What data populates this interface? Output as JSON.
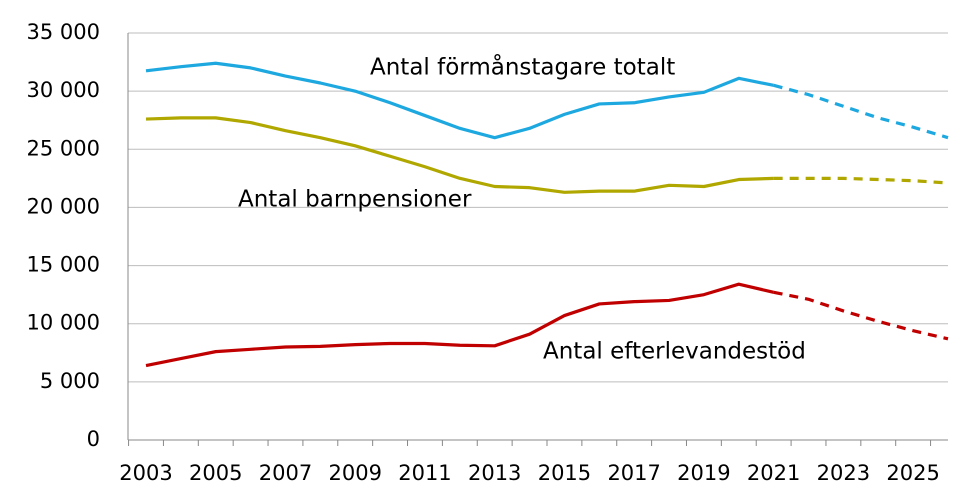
{
  "chart_data": {
    "type": "line",
    "categories": [
      "2003",
      null,
      "2005",
      null,
      "2007",
      null,
      "2009",
      null,
      "2011",
      null,
      "2013",
      null,
      "2015",
      null,
      "2017",
      null,
      "2019",
      null,
      "2021",
      null,
      "2023",
      null,
      "2025",
      null
    ],
    "dashed_from": "2021",
    "series": [
      {
        "name": "Antal förmånstagare totalt",
        "color": "#1ea8e0",
        "values": [
          31750,
          32100,
          32400,
          32000,
          31300,
          30700,
          30000,
          29000,
          27900,
          26800,
          26000,
          26800,
          28000,
          28900,
          29000,
          29500,
          29900,
          31100,
          30500,
          29700,
          28700,
          27700,
          26900,
          26000
        ]
      },
      {
        "name": "Antal barnpensioner",
        "color": "#b0a800",
        "values": [
          27600,
          27700,
          27700,
          27300,
          26600,
          26000,
          25300,
          24400,
          23500,
          22500,
          21800,
          21700,
          21300,
          21400,
          21400,
          21900,
          21800,
          22400,
          22500,
          22500,
          22500,
          22400,
          22300,
          22100
        ]
      },
      {
        "name": "Antal efterlevandestöd",
        "color": "#c00000",
        "values": [
          6400,
          7000,
          7600,
          7800,
          8000,
          8050,
          8200,
          8300,
          8300,
          8150,
          8100,
          9100,
          10700,
          11700,
          11900,
          12000,
          12500,
          13400,
          12700,
          12100,
          11100,
          10200,
          9400,
          8700
        ]
      }
    ],
    "ylim": [
      0,
      35000
    ],
    "yticks": [
      0,
      {
        "value": 5000,
        "label": "5 000"
      },
      {
        "value": 10000,
        "label": "10 000"
      },
      {
        "value": 15000,
        "label": "15 000"
      },
      {
        "value": 20000,
        "label": "20 000"
      },
      {
        "value": 25000,
        "label": "25 000"
      },
      {
        "value": 30000,
        "label": "30 000"
      },
      {
        "value": 35000,
        "label": "35 000"
      }
    ],
    "grid": true
  }
}
